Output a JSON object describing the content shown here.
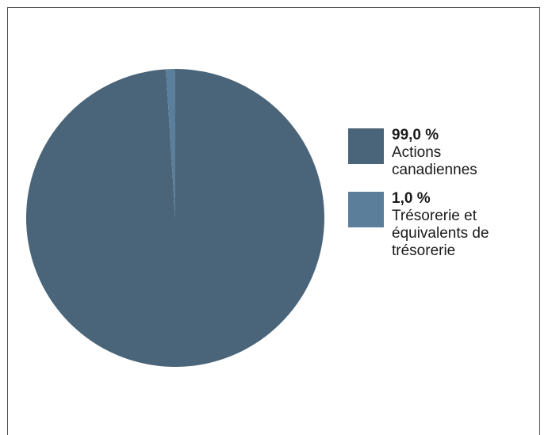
{
  "chart_data": {
    "type": "pie",
    "slices": [
      {
        "label": "Actions canadiennes",
        "value": 99.0,
        "value_text": "99,0 %",
        "color": "#4a6579"
      },
      {
        "label": "Trésorerie et équivalents de trésorerie",
        "value": 1.0,
        "value_text": "1,0 %",
        "color": "#5b7f9b"
      }
    ],
    "legend_position": "right"
  }
}
